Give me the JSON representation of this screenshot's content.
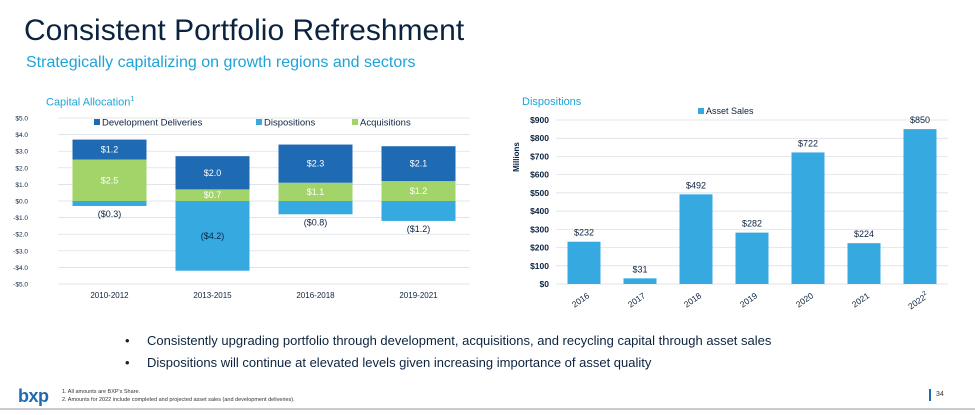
{
  "page": {
    "title": "Consistent Portfolio Refreshment",
    "subtitle": "Strategically capitalizing on growth regions and sectors",
    "bullets": [
      "Consistently upgrading portfolio through development, acquisitions, and recycling capital through asset sales",
      "Dispositions will continue at elevated levels given increasing importance of asset quality"
    ],
    "bullet_symbol": "•",
    "logo": "bxp",
    "footnotes": [
      "1.   All amounts are BXP's Share.",
      "2.   Amounts for 2022 include completed and projected asset sales (and development deliveries)."
    ],
    "page_number": "34",
    "colors": {
      "navy": "#0c2340",
      "accent": "#1ea3d8",
      "development": "#1e6ab3",
      "dispositions": "#36a9e1",
      "acquisitions": "#a2d46a"
    }
  },
  "chart_data": [
    {
      "type": "bar",
      "stacked": true,
      "title": "Capital Allocation",
      "title_sup": "1",
      "categories": [
        "2010-2012",
        "2013-2015",
        "2016-2018",
        "2019-2021"
      ],
      "series": [
        {
          "name": "Development Deliveries",
          "color": "#1e6ab3",
          "values": [
            1.2,
            2.0,
            2.3,
            2.1
          ],
          "labels": [
            "$1.2",
            "$2.0",
            "$2.3",
            "$2.1"
          ]
        },
        {
          "name": "Dispositions",
          "color": "#36a9e1",
          "values": [
            -0.3,
            -4.2,
            -0.8,
            -1.2
          ],
          "labels": [
            "($0.3)",
            "($4.2)",
            "($0.8)",
            "($1.2)"
          ]
        },
        {
          "name": "Acquisitions",
          "color": "#a2d46a",
          "values": [
            2.5,
            0.7,
            1.1,
            1.2
          ],
          "labels": [
            "$2.5",
            "$0.7",
            "$1.1",
            "$1.2"
          ]
        }
      ],
      "stack_order": [
        2,
        0
      ],
      "ylim": [
        -5,
        5
      ],
      "yticks": [
        -5,
        -4,
        -3,
        -2,
        -1,
        0,
        1,
        2,
        3,
        4,
        5
      ],
      "ytick_labels": [
        "-$5.0",
        "-$4.0",
        "-$3.0",
        "-$2.0",
        "-$1.0",
        "$0.0",
        "$1.0",
        "$2.0",
        "$3.0",
        "$4.0",
        "$5.0"
      ],
      "grid": true,
      "legend": "top"
    },
    {
      "type": "bar",
      "title": "Dispositions",
      "ylabel": "Millions",
      "categories": [
        "2016",
        "2017",
        "2018",
        "2019",
        "2020",
        "2021",
        "2022"
      ],
      "category_sup": [
        "",
        "",
        "",
        "",
        "",
        "",
        "2"
      ],
      "series": [
        {
          "name": "Asset Sales",
          "color": "#36a9e1",
          "values": [
            232,
            31,
            492,
            282,
            722,
            224,
            850
          ],
          "labels": [
            "$232",
            "$31",
            "$492",
            "$282",
            "$722",
            "$224",
            "$850"
          ]
        }
      ],
      "ylim": [
        0,
        900
      ],
      "yticks": [
        0,
        100,
        200,
        300,
        400,
        500,
        600,
        700,
        800,
        900
      ],
      "ytick_labels": [
        "$0",
        "$100",
        "$200",
        "$300",
        "$400",
        "$500",
        "$600",
        "$700",
        "$800",
        "$900"
      ],
      "grid": true,
      "legend": "top"
    }
  ]
}
